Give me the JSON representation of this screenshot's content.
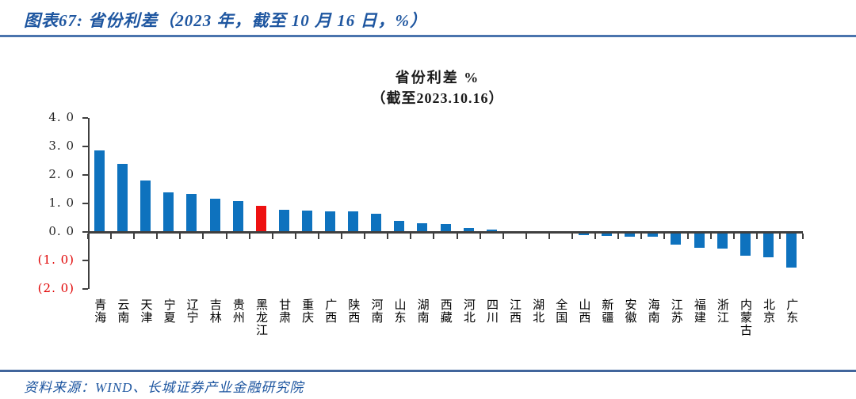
{
  "header": {
    "title": "图表67:  省份利差（2023 年，截至 10 月 16 日，%）"
  },
  "chart_data": {
    "type": "bar",
    "title": "省份利差 %",
    "subtitle": "（截至2023.10.16）",
    "categories": [
      "青海",
      "云南",
      "天津",
      "宁夏",
      "辽宁",
      "吉林",
      "贵州",
      "黑龙江",
      "甘肃",
      "重庆",
      "广西",
      "陕西",
      "河南",
      "山东",
      "湖南",
      "西藏",
      "河北",
      "四川",
      "江西",
      "湖北",
      "全国",
      "山西",
      "新疆",
      "安徽",
      "海南",
      "江苏",
      "福建",
      "浙江",
      "内蒙古",
      "北京",
      "广东"
    ],
    "values": [
      2.85,
      2.4,
      1.8,
      1.4,
      1.33,
      1.18,
      1.08,
      0.93,
      0.78,
      0.75,
      0.73,
      0.72,
      0.65,
      0.4,
      0.31,
      0.27,
      0.15,
      0.09,
      0.03,
      0.01,
      0.0,
      -0.1,
      -0.13,
      -0.16,
      -0.18,
      -0.44,
      -0.56,
      -0.58,
      -0.82,
      -0.9,
      -1.25
    ],
    "highlight_category": "黑龙江",
    "highlight_index": 7,
    "bar_color": "#0E72BE",
    "highlight_color": "#EE1111",
    "axis_color": "#3f3f3f",
    "ylim": [
      -2.0,
      4.0
    ],
    "ytick_values": [
      4,
      3,
      2,
      1,
      0,
      -1,
      -2
    ],
    "ytick_labels": [
      "4. 0",
      "3. 0",
      "2. 0",
      "1. 0",
      "0. 0",
      "(1. 0)",
      "(2. 0)"
    ],
    "positive_tick_color": "#262626",
    "negative_tick_color": "#E00000",
    "grid": "off",
    "legend": "none"
  },
  "source": {
    "label": "资料来源：WIND、长城证券产业金融研究院"
  }
}
